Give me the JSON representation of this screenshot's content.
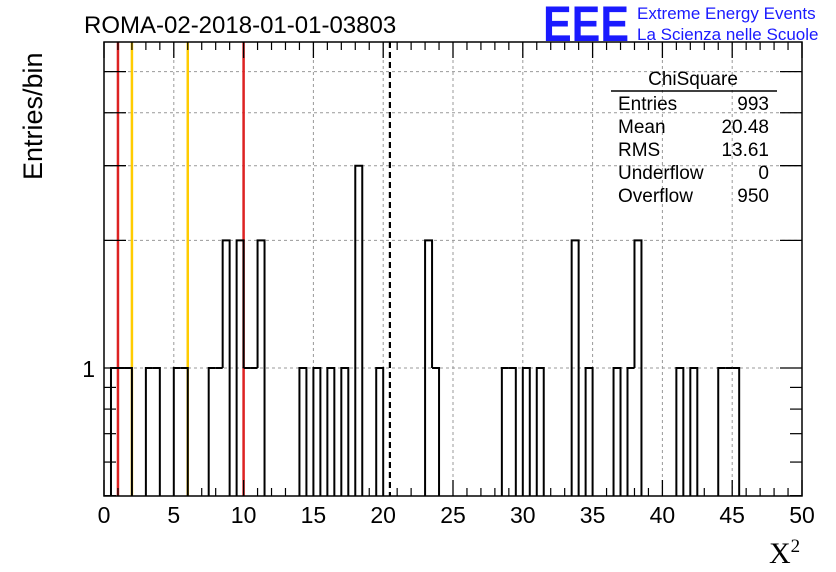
{
  "chart_data": {
    "type": "bar",
    "title": "ROMA-02-2018-01-01-03803",
    "xlabel": "X",
    "xlabel_sup": "2",
    "ylabel": "Entries/bin",
    "xlim": [
      0,
      50
    ],
    "ylog": true,
    "ytick_label": "1",
    "grid": true,
    "bin_width": 0.5,
    "bins": [
      {
        "x": 0.5,
        "v": 1
      },
      {
        "x": 1.0,
        "v": 1
      },
      {
        "x": 1.5,
        "v": 1
      },
      {
        "x": 3.0,
        "v": 1
      },
      {
        "x": 3.5,
        "v": 1
      },
      {
        "x": 5.0,
        "v": 1
      },
      {
        "x": 5.5,
        "v": 1
      },
      {
        "x": 7.5,
        "v": 1
      },
      {
        "x": 8.0,
        "v": 1
      },
      {
        "x": 8.5,
        "v": 2
      },
      {
        "x": 9.5,
        "v": 2
      },
      {
        "x": 10.0,
        "v": 1
      },
      {
        "x": 10.5,
        "v": 1
      },
      {
        "x": 11.0,
        "v": 2
      },
      {
        "x": 14.0,
        "v": 1
      },
      {
        "x": 15.0,
        "v": 1
      },
      {
        "x": 16.0,
        "v": 1
      },
      {
        "x": 17.0,
        "v": 1
      },
      {
        "x": 18.0,
        "v": 3
      },
      {
        "x": 19.5,
        "v": 1
      },
      {
        "x": 23.0,
        "v": 2
      },
      {
        "x": 23.5,
        "v": 1
      },
      {
        "x": 28.5,
        "v": 1
      },
      {
        "x": 29.0,
        "v": 1
      },
      {
        "x": 30.0,
        "v": 1
      },
      {
        "x": 31.0,
        "v": 1
      },
      {
        "x": 33.5,
        "v": 2
      },
      {
        "x": 34.5,
        "v": 1
      },
      {
        "x": 36.5,
        "v": 1
      },
      {
        "x": 37.5,
        "v": 1
      },
      {
        "x": 38.0,
        "v": 2
      },
      {
        "x": 41.0,
        "v": 1
      },
      {
        "x": 42.0,
        "v": 1
      },
      {
        "x": 44.0,
        "v": 1
      },
      {
        "x": 44.5,
        "v": 1
      },
      {
        "x": 45.0,
        "v": 1
      }
    ],
    "vlines": [
      {
        "x": 1,
        "color": "#dd2222",
        "style": "solid"
      },
      {
        "x": 2,
        "color": "#ffcc00",
        "style": "solid"
      },
      {
        "x": 6,
        "color": "#ffcc00",
        "style": "solid"
      },
      {
        "x": 10,
        "color": "#dd2222",
        "style": "solid"
      },
      {
        "x": 20.48,
        "color": "#000000",
        "style": "dashed"
      }
    ],
    "stats": {
      "name": "ChiSquare",
      "rows": [
        {
          "label": "Entries",
          "value": "993"
        },
        {
          "label": "Mean",
          "value": "20.48"
        },
        {
          "label": "RMS",
          "value": "13.61"
        },
        {
          "label": "Underflow",
          "value": "0"
        },
        {
          "label": "Overflow",
          "value": "950"
        }
      ]
    }
  },
  "logo": {
    "text": "EEE",
    "line1": "Extreme Energy Events",
    "line2": "La Scienza nelle Scuole"
  }
}
